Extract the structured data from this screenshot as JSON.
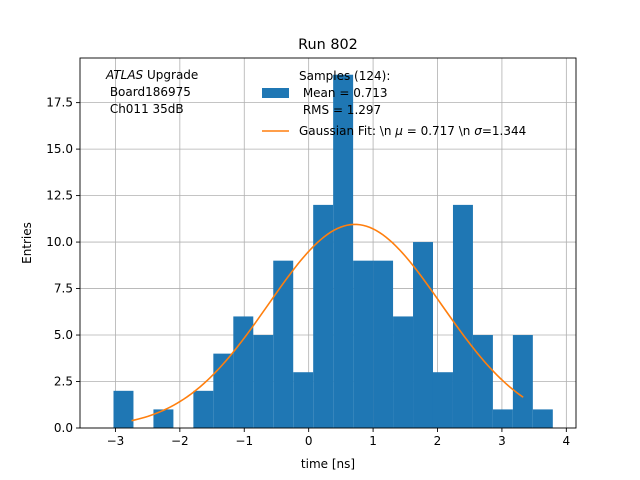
{
  "chart_data": {
    "type": "bar",
    "title": "Run 802",
    "xlabel": "time [ns]",
    "ylabel": "Entries",
    "xlim": [
      -3.55,
      4.15
    ],
    "ylim": [
      0,
      19.9
    ],
    "grid": true,
    "xticks": [
      -3,
      -2,
      -1,
      0,
      1,
      2,
      3,
      4
    ],
    "xtick_labels": [
      "−3",
      "−2",
      "−1",
      "0",
      "1",
      "2",
      "3",
      "4"
    ],
    "yticks": [
      0,
      2.5,
      5,
      7.5,
      10,
      12.5,
      15,
      17.5
    ],
    "ytick_labels": [
      "0.0",
      "2.5",
      "5.0",
      "7.5",
      "10.0",
      "12.5",
      "15.0",
      "17.5"
    ],
    "bar_color": "#1f77b4",
    "fit_color": "#ff7f0e",
    "bin_edges": [
      -3.03,
      -2.72,
      -2.41,
      -2.1,
      -1.79,
      -1.48,
      -1.17,
      -0.86,
      -0.55,
      -0.24,
      0.07,
      0.38,
      0.69,
      1.0,
      1.31,
      1.62,
      1.93,
      2.24,
      2.55,
      2.86,
      3.17,
      3.48,
      3.79
    ],
    "counts": [
      2,
      0,
      1,
      0,
      2,
      4,
      6,
      5,
      9,
      3,
      12,
      19,
      9,
      9,
      6,
      10,
      3,
      12,
      5,
      1,
      5,
      1
    ],
    "series": [
      {
        "name": "Samples (124):\n Mean = 0.713\n RMS = 1.297",
        "kind": "histogram"
      },
      {
        "name": "Gaussian Fit: \\n μ = 0.717 \\n σ=1.344",
        "kind": "line",
        "mu": 0.717,
        "sigma": 1.344,
        "amplitude": 10.95,
        "x_range": [
          -2.75,
          3.33
        ]
      }
    ],
    "legend": {
      "placement": "top-right",
      "hist_lines": [
        "Samples (124):",
        " Mean = 0.713",
        " RMS = 1.297"
      ],
      "fit_parts": [
        "Gaussian Fit: \\n ",
        "μ",
        " = 0.717 \\n ",
        "σ",
        "=1.344"
      ]
    },
    "annotation": {
      "italic": "ATLAS",
      "rest": " Upgrade",
      "line2": " Board186975",
      "line3": " Ch011 35dB"
    }
  }
}
